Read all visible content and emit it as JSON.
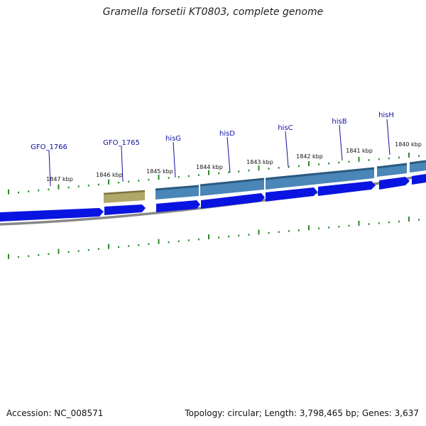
{
  "title": "Gramella forsetii KT0803, complete genome",
  "accession_text": "Accession: NC_008571",
  "summary_text": "Topology: circular; Length: 3,798,465 bp; Genes: 3,637",
  "colors": {
    "cds": "#0a14e0",
    "gene_feature": "#4a86b8",
    "misc_feature": "#b0a868",
    "backbone": "#888888",
    "tick": "#2a8a2a",
    "label": "#1010a0"
  },
  "genes": [
    {
      "name": "GFO_1766"
    },
    {
      "name": "GFO_1765"
    },
    {
      "name": "hisG"
    },
    {
      "name": "hisD"
    },
    {
      "name": "hisC"
    },
    {
      "name": "hisB"
    },
    {
      "name": "hisH"
    }
  ],
  "scale_labels": [
    "1847 kbp",
    "1846 kbp",
    "1845 kbp",
    "1844 kbp",
    "1843 kbp",
    "1842 kbp",
    "1841 kbp",
    "1840 kbp"
  ]
}
